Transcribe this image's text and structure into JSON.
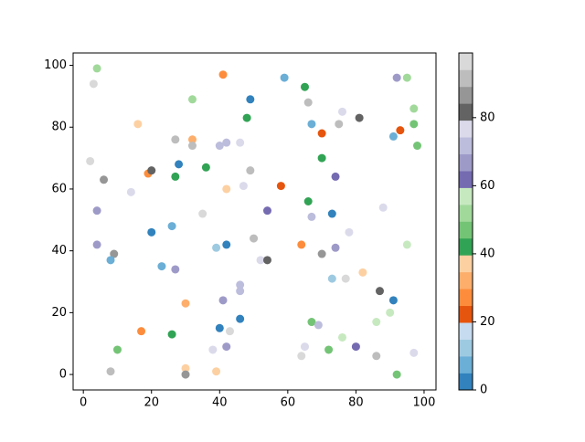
{
  "chart_data": {
    "type": "scatter",
    "x": [
      4,
      3,
      41,
      59,
      65,
      92,
      95,
      32,
      49,
      66,
      76,
      97,
      48,
      81,
      16,
      67,
      75,
      97,
      91,
      93,
      70,
      27,
      32,
      32,
      40,
      42,
      46,
      98,
      2,
      70,
      28,
      36,
      19,
      20,
      27,
      49,
      74,
      6,
      14,
      42,
      47,
      58,
      66,
      4,
      35,
      54,
      67,
      73,
      88,
      26,
      20,
      4,
      39,
      42,
      50,
      64,
      74,
      78,
      95,
      9,
      70,
      8,
      23,
      27,
      52,
      54,
      73,
      77,
      82,
      46,
      46,
      87,
      30,
      41,
      91,
      90,
      46,
      67,
      69,
      86,
      17,
      26,
      40,
      43,
      76,
      10,
      38,
      42,
      65,
      72,
      80,
      97,
      64,
      86,
      8,
      30,
      30,
      39,
      92
    ],
    "values": [
      99,
      94,
      97,
      96,
      93,
      96,
      96,
      89,
      89,
      88,
      85,
      86,
      83,
      83,
      81,
      81,
      81,
      81,
      77,
      79,
      78,
      76,
      76,
      74,
      74,
      75,
      75,
      74,
      69,
      70,
      68,
      67,
      65,
      66,
      64,
      66,
      64,
      63,
      59,
      60,
      61,
      61,
      56,
      53,
      52,
      53,
      51,
      52,
      54,
      48,
      46,
      42,
      41,
      42,
      44,
      42,
      41,
      46,
      42,
      39,
      39,
      37,
      35,
      34,
      37,
      37,
      31,
      31,
      33,
      29,
      27,
      27,
      23,
      24,
      24,
      20,
      18,
      17,
      16,
      17,
      14,
      13,
      15,
      14,
      12,
      8,
      8,
      9,
      9,
      8,
      9,
      7,
      6,
      6,
      1,
      2,
      0,
      1,
      0
    ],
    "color_values": [
      52,
      97,
      27,
      7,
      42,
      67,
      52,
      52,
      2,
      92,
      77,
      52,
      42,
      82,
      37,
      7,
      92,
      47,
      7,
      22,
      22,
      92,
      32,
      92,
      72,
      72,
      77,
      47,
      97,
      42,
      2,
      42,
      27,
      82,
      42,
      92,
      62,
      87,
      77,
      37,
      77,
      22,
      42,
      67,
      97,
      62,
      72,
      2,
      77,
      7,
      2,
      67,
      12,
      2,
      92,
      27,
      67,
      77,
      57,
      87,
      87,
      7,
      7,
      67,
      77,
      82,
      12,
      97,
      37,
      72,
      72,
      82,
      32,
      67,
      2,
      57,
      2,
      47,
      72,
      57,
      27,
      42,
      2,
      97,
      57,
      47,
      77,
      67,
      77,
      47,
      62,
      77,
      97,
      92,
      92,
      37,
      87,
      37,
      47
    ],
    "colormap": [
      "#3182bd",
      "#6baed6",
      "#9ecae1",
      "#c6dbef",
      "#e6550d",
      "#fd8d3c",
      "#fdae6b",
      "#fdd0a2",
      "#31a354",
      "#74c476",
      "#a1d99b",
      "#c7e9c0",
      "#756bb1",
      "#9e9ac8",
      "#bcbddc",
      "#dadaeb",
      "#636363",
      "#969696",
      "#bdbdbd",
      "#d9d9d9"
    ],
    "xlim": [
      -3,
      103.5
    ],
    "ylim": [
      -5,
      104
    ],
    "clim": [
      0,
      99
    ],
    "xticks": [
      0,
      20,
      40,
      60,
      80,
      100
    ],
    "yticks": [
      0,
      20,
      40,
      60,
      80,
      100
    ],
    "cticks": [
      0,
      20,
      40,
      60,
      80
    ]
  }
}
